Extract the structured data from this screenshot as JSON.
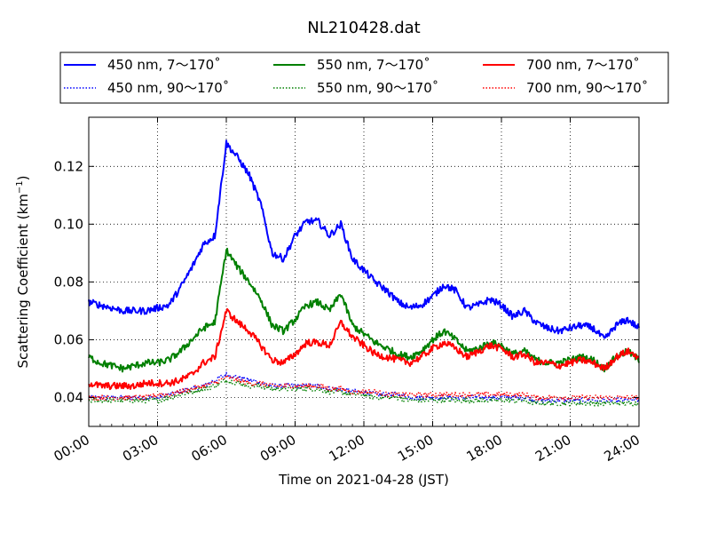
{
  "chart_data": {
    "type": "line",
    "title": "NL210428.dat",
    "xlabel": "Time on 2021-04-28 (JST)",
    "ylabel": "Scattering Coefficient (km",
    "ylabel_sup": "−1",
    "ylabel_close": ")",
    "xlim": [
      0,
      24
    ],
    "ylim": [
      0.03,
      0.137
    ],
    "xticks": [
      0,
      3,
      6,
      9,
      12,
      15,
      18,
      21,
      24
    ],
    "xtick_labels": [
      "00:00",
      "03:00",
      "06:00",
      "09:00",
      "12:00",
      "15:00",
      "18:00",
      "21:00",
      "24:00"
    ],
    "yticks": [
      0.04,
      0.06,
      0.08,
      0.1,
      0.12
    ],
    "ytick_labels": [
      "0.04",
      "0.06",
      "0.08",
      "0.10",
      "0.12"
    ],
    "grid": true,
    "legend_position": "top, above plot, 3 columns",
    "x": [
      0,
      0.5,
      1,
      1.5,
      2,
      2.5,
      3,
      3.5,
      4,
      4.5,
      5,
      5.5,
      6,
      6.5,
      7,
      7.5,
      8,
      8.5,
      9,
      9.5,
      10,
      10.5,
      11,
      11.5,
      12,
      12.5,
      13,
      13.5,
      14,
      14.5,
      15,
      15.5,
      16,
      16.5,
      17,
      17.5,
      18,
      18.5,
      19,
      19.5,
      20,
      20.5,
      21,
      21.5,
      22,
      22.5,
      23,
      23.5,
      24
    ],
    "series": [
      {
        "name": "450 nm, 7～170˚",
        "color": "#0000ff",
        "style": "solid",
        "values": [
          0.073,
          0.072,
          0.071,
          0.07,
          0.07,
          0.07,
          0.071,
          0.072,
          0.078,
          0.085,
          0.093,
          0.096,
          0.128,
          0.123,
          0.117,
          0.107,
          0.09,
          0.088,
          0.096,
          0.101,
          0.101,
          0.096,
          0.1,
          0.088,
          0.084,
          0.08,
          0.077,
          0.073,
          0.071,
          0.072,
          0.075,
          0.079,
          0.077,
          0.071,
          0.072,
          0.074,
          0.072,
          0.068,
          0.07,
          0.066,
          0.064,
          0.063,
          0.064,
          0.065,
          0.064,
          0.06,
          0.065,
          0.067,
          0.064
        ]
      },
      {
        "name": "550 nm, 7～170˚",
        "color": "#008000",
        "style": "solid",
        "values": [
          0.054,
          0.052,
          0.051,
          0.05,
          0.051,
          0.052,
          0.052,
          0.053,
          0.056,
          0.06,
          0.064,
          0.066,
          0.091,
          0.085,
          0.08,
          0.074,
          0.065,
          0.063,
          0.067,
          0.072,
          0.073,
          0.07,
          0.076,
          0.065,
          0.062,
          0.059,
          0.057,
          0.055,
          0.054,
          0.056,
          0.06,
          0.063,
          0.06,
          0.056,
          0.057,
          0.059,
          0.058,
          0.055,
          0.056,
          0.053,
          0.052,
          0.052,
          0.053,
          0.054,
          0.053,
          0.05,
          0.054,
          0.056,
          0.053
        ]
      },
      {
        "name": "700 nm, 7～170˚",
        "color": "#ff0000",
        "style": "solid",
        "values": [
          0.045,
          0.044,
          0.044,
          0.044,
          0.044,
          0.045,
          0.045,
          0.045,
          0.046,
          0.048,
          0.052,
          0.054,
          0.07,
          0.066,
          0.063,
          0.058,
          0.053,
          0.052,
          0.055,
          0.059,
          0.059,
          0.058,
          0.066,
          0.061,
          0.058,
          0.055,
          0.054,
          0.053,
          0.052,
          0.054,
          0.057,
          0.059,
          0.057,
          0.054,
          0.056,
          0.058,
          0.057,
          0.054,
          0.055,
          0.052,
          0.052,
          0.051,
          0.052,
          0.053,
          0.052,
          0.05,
          0.054,
          0.056,
          0.054
        ]
      },
      {
        "name": "450 nm, 90～170˚",
        "color": "#0000ff",
        "style": "dotted",
        "values": [
          0.04,
          0.04,
          0.04,
          0.04,
          0.04,
          0.04,
          0.04,
          0.041,
          0.042,
          0.043,
          0.044,
          0.046,
          0.048,
          0.047,
          0.046,
          0.045,
          0.044,
          0.044,
          0.044,
          0.044,
          0.044,
          0.043,
          0.043,
          0.042,
          0.042,
          0.041,
          0.041,
          0.041,
          0.04,
          0.04,
          0.04,
          0.04,
          0.04,
          0.04,
          0.04,
          0.04,
          0.04,
          0.04,
          0.04,
          0.039,
          0.039,
          0.039,
          0.039,
          0.039,
          0.039,
          0.039,
          0.039,
          0.039,
          0.039
        ]
      },
      {
        "name": "550 nm, 90～170˚",
        "color": "#008000",
        "style": "dotted",
        "values": [
          0.039,
          0.039,
          0.039,
          0.039,
          0.039,
          0.039,
          0.039,
          0.04,
          0.041,
          0.042,
          0.043,
          0.044,
          0.046,
          0.045,
          0.044,
          0.044,
          0.043,
          0.043,
          0.043,
          0.043,
          0.043,
          0.042,
          0.042,
          0.041,
          0.041,
          0.04,
          0.04,
          0.04,
          0.039,
          0.039,
          0.039,
          0.039,
          0.039,
          0.039,
          0.039,
          0.039,
          0.039,
          0.039,
          0.039,
          0.038,
          0.038,
          0.038,
          0.038,
          0.038,
          0.038,
          0.038,
          0.038,
          0.038,
          0.038
        ]
      },
      {
        "name": "700 nm, 90～170˚",
        "color": "#ff0000",
        "style": "dotted",
        "values": [
          0.04,
          0.04,
          0.04,
          0.04,
          0.04,
          0.04,
          0.041,
          0.041,
          0.042,
          0.043,
          0.044,
          0.045,
          0.047,
          0.046,
          0.045,
          0.045,
          0.044,
          0.044,
          0.044,
          0.044,
          0.044,
          0.043,
          0.043,
          0.042,
          0.042,
          0.042,
          0.041,
          0.041,
          0.041,
          0.041,
          0.041,
          0.041,
          0.041,
          0.041,
          0.041,
          0.041,
          0.041,
          0.041,
          0.041,
          0.04,
          0.04,
          0.04,
          0.04,
          0.04,
          0.04,
          0.04,
          0.04,
          0.04,
          0.04
        ]
      }
    ]
  }
}
